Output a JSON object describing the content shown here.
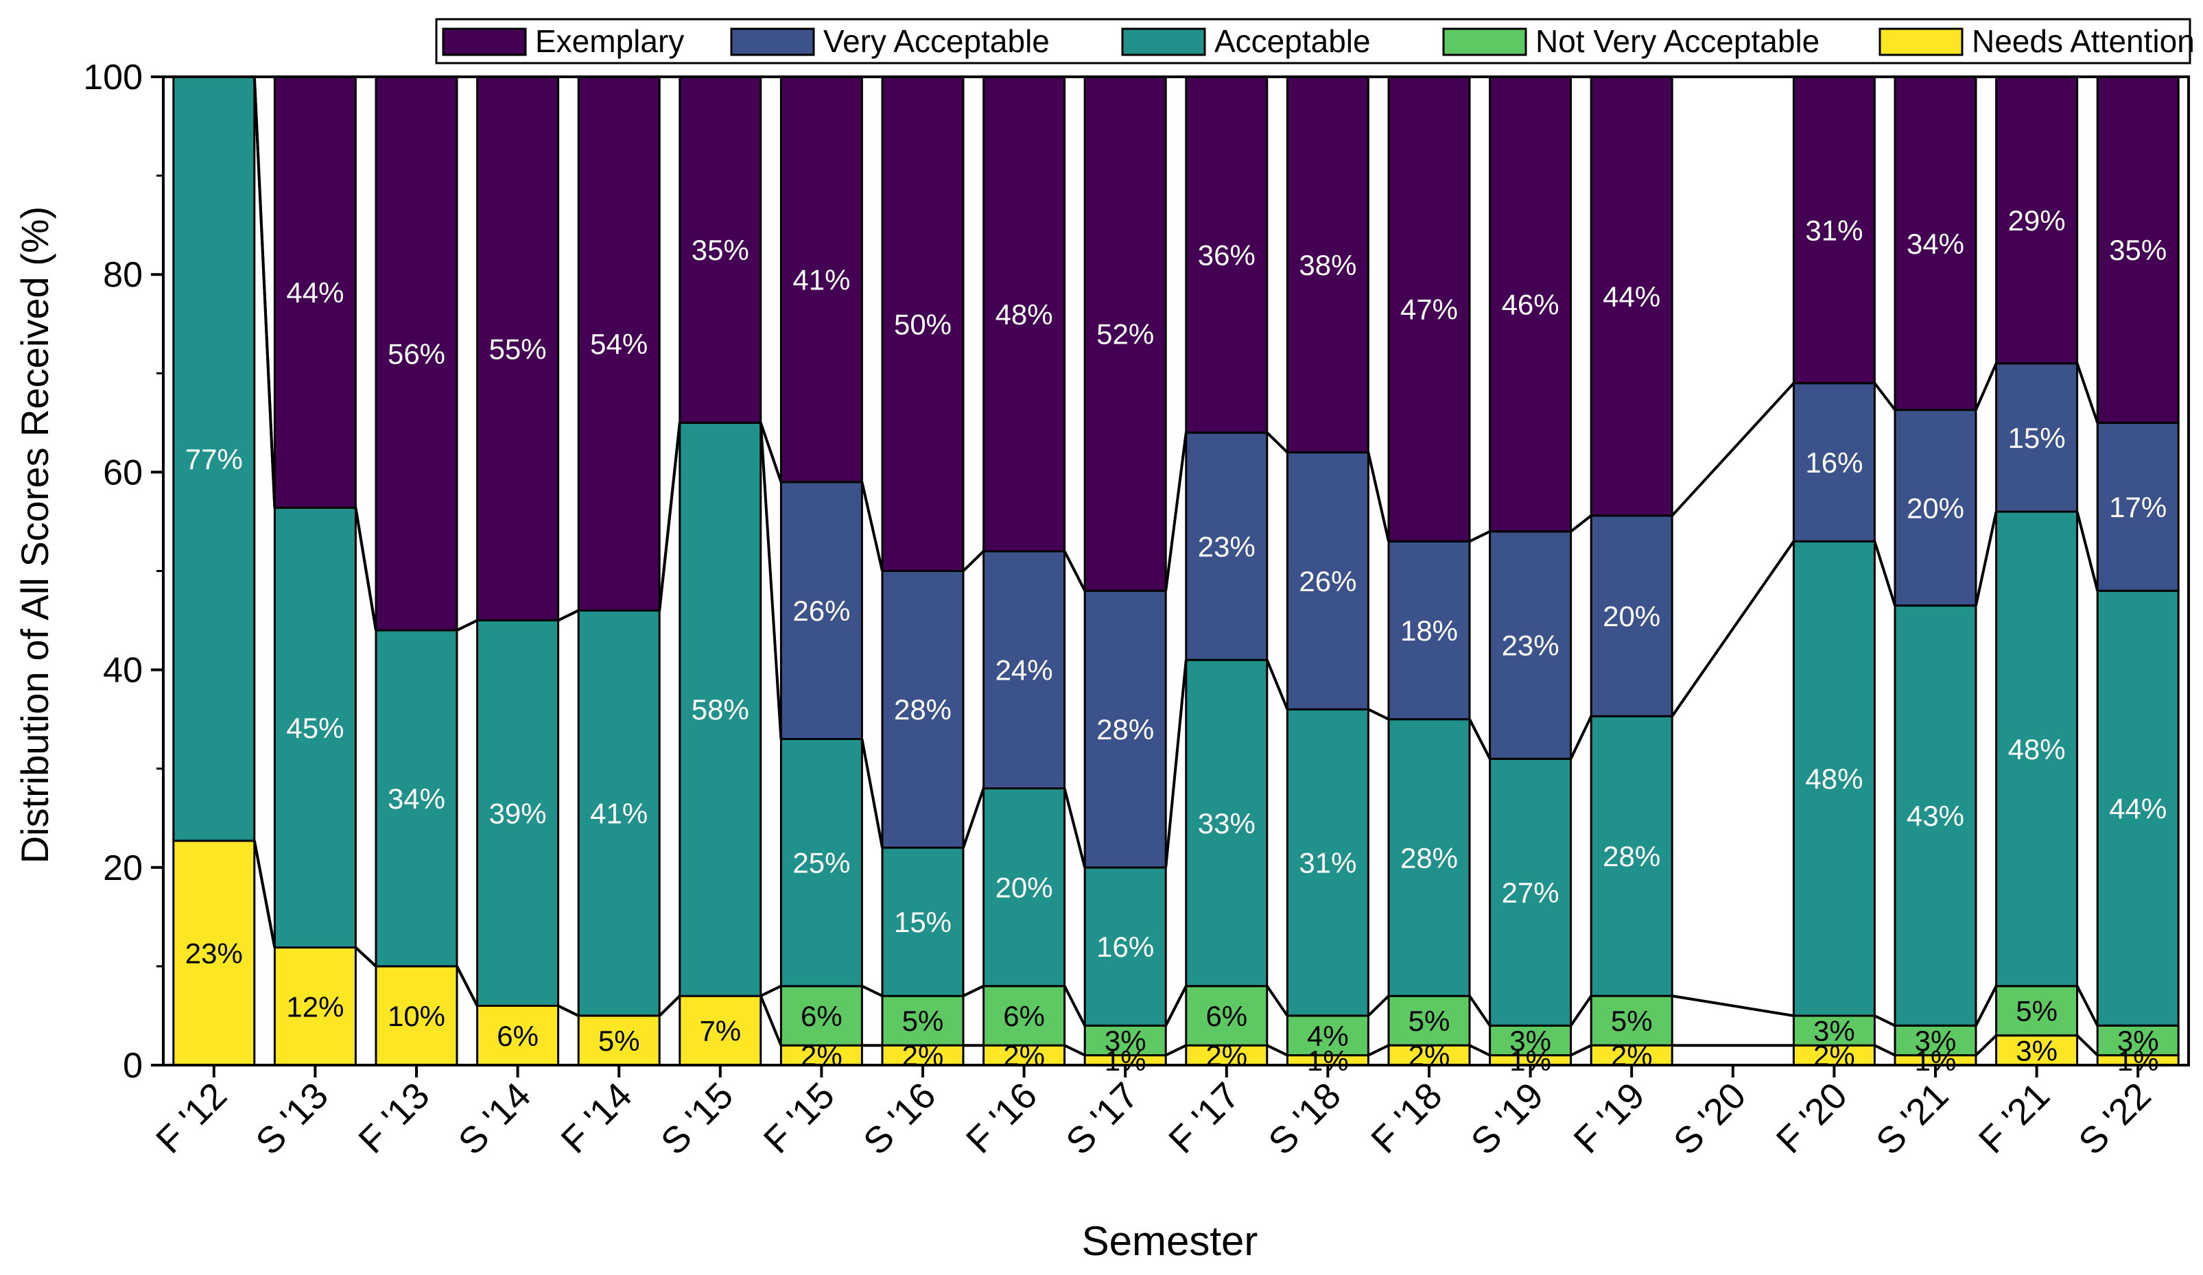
{
  "chart_data": {
    "type": "bar",
    "stacked": true,
    "connector_lines": true,
    "xlabel": "Semester",
    "ylabel": "Distribution of All Scores Received (%)",
    "ylim": [
      0,
      100
    ],
    "yticks": [
      0,
      20,
      40,
      60,
      80,
      100
    ],
    "legend_position": "top-right",
    "categories": [
      "F '12",
      "S '13",
      "F '13",
      "S '14",
      "F '14",
      "S '15",
      "F '15",
      "S '16",
      "F '16",
      "S '17",
      "F '17",
      "S '18",
      "F '18",
      "S '19",
      "F '19",
      "S '20",
      "F '20",
      "S '21",
      "F '21",
      "S '22"
    ],
    "series": [
      {
        "name": "Needs Attention",
        "color": "#FDE725",
        "text_color": "#000000",
        "values": [
          22.7,
          11.9,
          10,
          6,
          5,
          7,
          2,
          2,
          2,
          1,
          2,
          1,
          2,
          1,
          2,
          null,
          2,
          1,
          3,
          1
        ],
        "labels": [
          "23%",
          "12%",
          "10%",
          "6%",
          "5%",
          "7%",
          "2%",
          "2%",
          "2%",
          "1%",
          "2%",
          "1%",
          "2%",
          "1%",
          "2%",
          "",
          "2%",
          "1%",
          "3%",
          "1%"
        ]
      },
      {
        "name": "Not Very Acceptable",
        "color": "#5EC962",
        "text_color": "#000000",
        "values": [
          0,
          0,
          0,
          0,
          0,
          0,
          6,
          5,
          6,
          3,
          6,
          4,
          5,
          3,
          5,
          null,
          3,
          3,
          5,
          3
        ],
        "labels": [
          "",
          "",
          "",
          "",
          "",
          "",
          "6%",
          "5%",
          "6%",
          "3%",
          "6%",
          "4%",
          "5%",
          "3%",
          "5%",
          "",
          "3%",
          "3%",
          "5%",
          "3%"
        ]
      },
      {
        "name": "Acceptable",
        "color": "#21918C",
        "text_color": "#ffffff",
        "values": [
          77.3,
          44.5,
          34,
          39,
          41,
          58,
          25,
          15,
          20,
          16,
          33,
          31,
          28,
          27,
          28.3,
          null,
          48,
          42.5,
          48,
          44
        ],
        "labels": [
          "77%",
          "45%",
          "34%",
          "39%",
          "41%",
          "58%",
          "25%",
          "15%",
          "20%",
          "16%",
          "33%",
          "31%",
          "28%",
          "27%",
          "28%",
          "",
          "48%",
          "43%",
          "48%",
          "44%"
        ]
      },
      {
        "name": "Very Acceptable",
        "color": "#3B528B",
        "text_color": "#ffffff",
        "values": [
          0,
          0,
          0,
          0,
          0,
          0,
          26,
          28,
          24,
          28,
          23,
          26,
          18,
          23,
          20.3,
          null,
          16,
          19.8,
          15,
          17
        ],
        "labels": [
          "",
          "",
          "",
          "",
          "",
          "",
          "26%",
          "28%",
          "24%",
          "28%",
          "23%",
          "26%",
          "18%",
          "23%",
          "20%",
          "",
          "16%",
          "20%",
          "15%",
          "17%"
        ]
      },
      {
        "name": "Exemplary",
        "color": "#440154",
        "text_color": "#ffffff",
        "values": [
          0,
          43.6,
          56,
          55,
          54,
          35,
          41,
          50,
          48,
          52,
          36,
          38,
          47,
          46,
          44.4,
          null,
          31,
          33.7,
          29,
          35
        ],
        "labels": [
          "",
          "44%",
          "56%",
          "55%",
          "54%",
          "35%",
          "41%",
          "50%",
          "48%",
          "52%",
          "36%",
          "38%",
          "47%",
          "46%",
          "44%",
          "",
          "31%",
          "34%",
          "29%",
          "35%"
        ]
      }
    ]
  }
}
